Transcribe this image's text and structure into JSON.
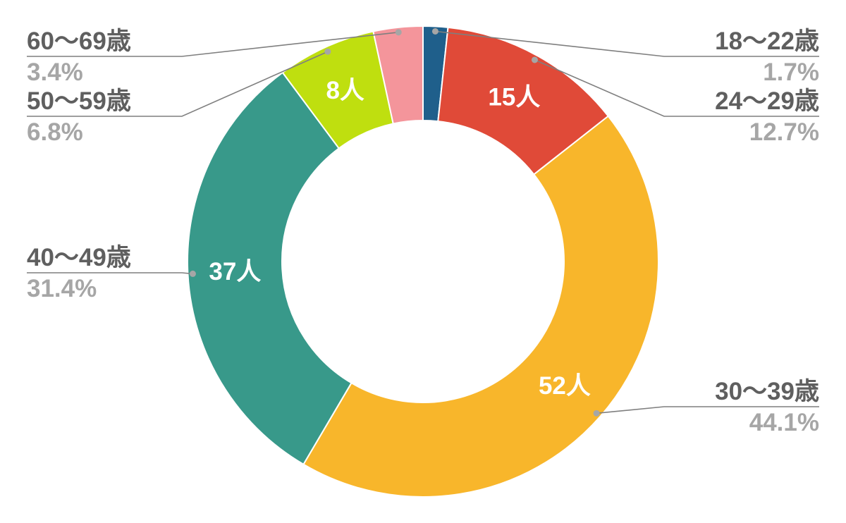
{
  "chart_data": {
    "type": "pie",
    "variant": "donut",
    "unit": "人",
    "title": "",
    "slices": [
      {
        "category": "18〜22歳",
        "value": 2,
        "percent": "1.7%",
        "count_label": "",
        "color": "#1f5f8b"
      },
      {
        "category": "24〜29歳",
        "value": 15,
        "percent": "12.7%",
        "count_label": "15人",
        "color": "#e04a38"
      },
      {
        "category": "30〜39歳",
        "value": 52,
        "percent": "44.1%",
        "count_label": "52人",
        "color": "#f8b62b"
      },
      {
        "category": "40〜49歳",
        "value": 37,
        "percent": "31.4%",
        "count_label": "37人",
        "color": "#38998a"
      },
      {
        "category": "50〜59歳",
        "value": 8,
        "percent": "6.8%",
        "count_label": "8人",
        "color": "#bfdf0f"
      },
      {
        "category": "60〜69歳",
        "value": 4,
        "percent": "3.4%",
        "count_label": "",
        "color": "#f4959b"
      }
    ]
  }
}
